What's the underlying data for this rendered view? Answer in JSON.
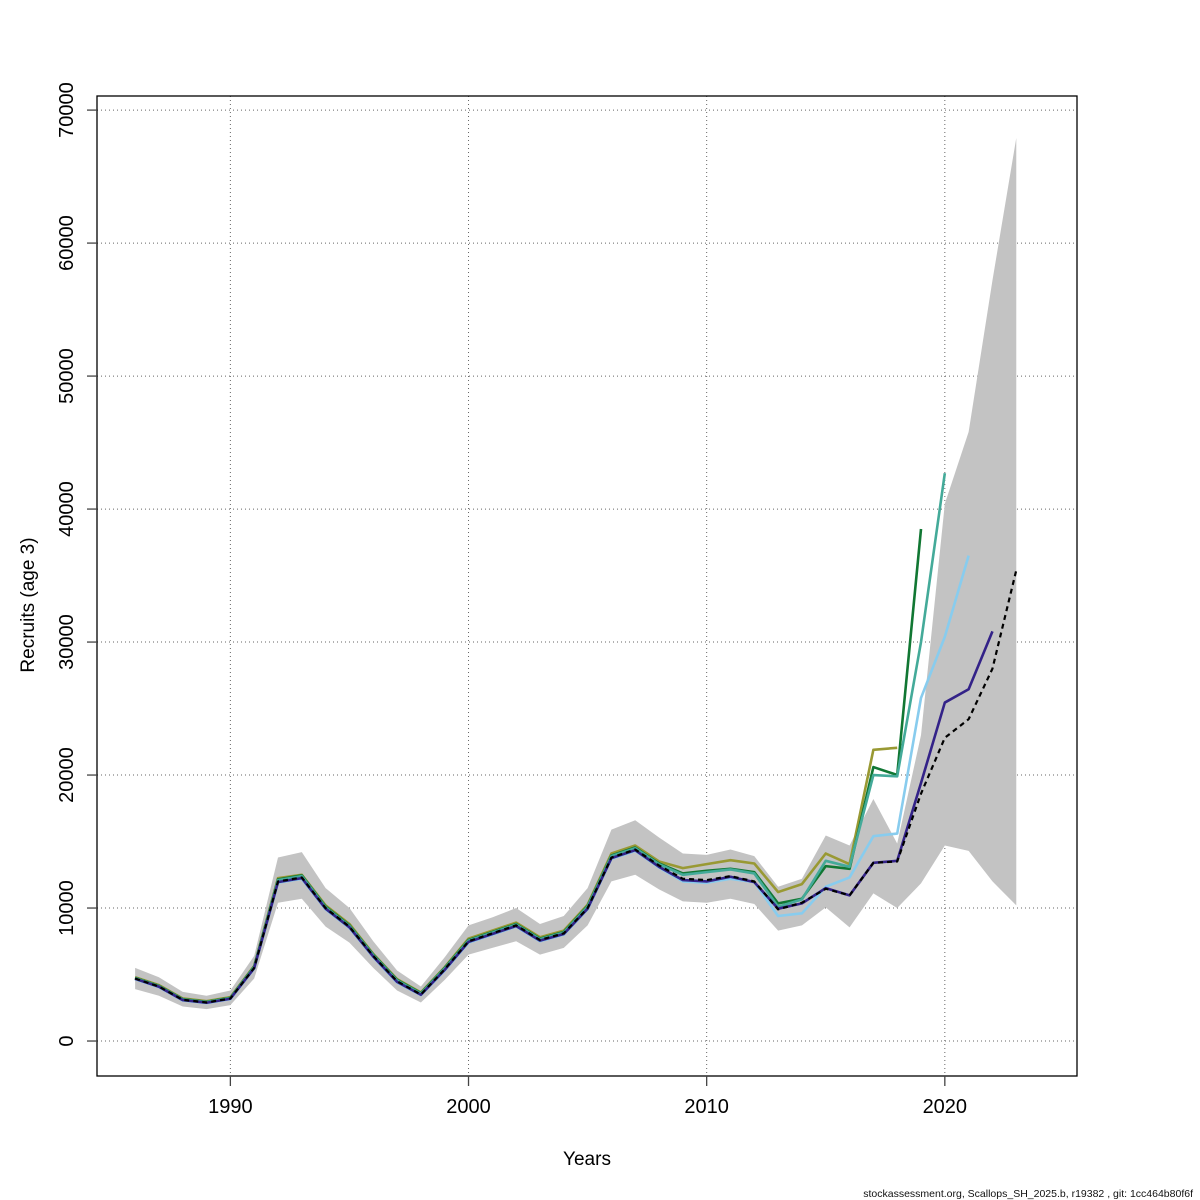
{
  "footer": {
    "text": "stockassessment.org, Scallops_SH_2025.b, r19382 , git: 1cc464b80f6f"
  },
  "chart_data": {
    "type": "line",
    "title": "",
    "xlabel": "Years",
    "ylabel": "Recruits (age 3)",
    "xlim": [
      1984.4,
      2025.55
    ],
    "ylim": [
      -2630,
      71060
    ],
    "x_ticks": [
      1990,
      2000,
      2010,
      2020
    ],
    "y_ticks": [
      0,
      10000,
      20000,
      30000,
      40000,
      50000,
      60000,
      70000
    ],
    "grid": "dotted",
    "legend": "none",
    "years": [
      1986,
      1987,
      1988,
      1989,
      1990,
      1991,
      1992,
      1993,
      1994,
      1995,
      1996,
      1997,
      1998,
      1999,
      2000,
      2001,
      2002,
      2003,
      2004,
      2005,
      2006,
      2007,
      2008,
      2009,
      2010,
      2011,
      2012,
      2013,
      2014,
      2015,
      2016,
      2017,
      2018,
      2019,
      2020,
      2021,
      2022,
      2023
    ],
    "confidence_band": {
      "color": "#c3c3c3",
      "lo": [
        3900,
        3400,
        2600,
        2400,
        2700,
        4700,
        10400,
        10700,
        8600,
        7400,
        5500,
        3800,
        2900,
        4600,
        6500,
        7000,
        7500,
        6500,
        7000,
        8700,
        12000,
        12500,
        11400,
        10500,
        10400,
        10700,
        10300,
        8300,
        8700,
        10050,
        8550,
        11100,
        10000,
        11850,
        14700,
        14300,
        12000,
        10200
      ],
      "hi": [
        5500,
        4800,
        3700,
        3400,
        3800,
        6400,
        13800,
        14200,
        11500,
        10000,
        7500,
        5300,
        4100,
        6300,
        8700,
        9300,
        10000,
        8800,
        9400,
        11500,
        15900,
        16600,
        15300,
        14100,
        14000,
        14400,
        13900,
        11600,
        12200,
        15450,
        14700,
        18200,
        14850,
        23000,
        40400,
        45800,
        57200,
        67900
      ]
    },
    "series": [
      {
        "name": "olive-line",
        "color": "#999933",
        "dash": null,
        "width": 2.6,
        "values": [
          4800,
          4200,
          3200,
          3000,
          3300,
          5650,
          12250,
          12500,
          10200,
          8800,
          6550,
          4650,
          3650,
          5550,
          7700,
          8300,
          8900,
          7800,
          8300,
          10250,
          14100,
          14700,
          13500,
          13000,
          13300,
          13600,
          13350,
          11200,
          11800,
          14100,
          13300,
          21900,
          22050,
          null,
          null,
          null,
          null,
          null
        ]
      },
      {
        "name": "green-line",
        "color": "#117733",
        "dash": null,
        "width": 2.6,
        "values": [
          4750,
          4150,
          3150,
          2950,
          3250,
          5600,
          12150,
          12450,
          10100,
          8700,
          6500,
          4600,
          3600,
          5500,
          7600,
          8200,
          8800,
          7700,
          8200,
          10150,
          13950,
          14550,
          13350,
          12600,
          12800,
          12950,
          12700,
          10350,
          10700,
          13150,
          12950,
          20600,
          20000,
          38500,
          null,
          null,
          null,
          null
        ]
      },
      {
        "name": "teal-line",
        "color": "#44AA99",
        "dash": null,
        "width": 2.6,
        "values": [
          4720,
          4120,
          3120,
          2920,
          3220,
          5550,
          12100,
          12400,
          10050,
          8650,
          6450,
          4550,
          3550,
          5450,
          7550,
          8150,
          8750,
          7650,
          8150,
          10100,
          13900,
          14500,
          13300,
          12500,
          12700,
          12900,
          12600,
          10100,
          10650,
          13550,
          13100,
          20000,
          19900,
          30000,
          42700,
          null,
          null,
          null
        ]
      },
      {
        "name": "lightblue-line",
        "color": "#88CCEE",
        "dash": null,
        "width": 2.6,
        "values": [
          4650,
          4050,
          3050,
          2850,
          3150,
          5450,
          11900,
          12200,
          9900,
          8500,
          6300,
          4400,
          3450,
          5300,
          7400,
          8000,
          8600,
          7500,
          8000,
          9900,
          13700,
          14300,
          13050,
          12000,
          11900,
          12200,
          11950,
          9400,
          9600,
          11600,
          12300,
          15400,
          15600,
          25800,
          30400,
          36500,
          null,
          null
        ]
      },
      {
        "name": "purple-line",
        "color": "#332288",
        "dash": null,
        "width": 2.6,
        "values": [
          4680,
          4080,
          3080,
          2880,
          3180,
          5480,
          11950,
          12250,
          9950,
          8550,
          6350,
          4450,
          3480,
          5350,
          7450,
          8050,
          8650,
          7550,
          8050,
          9950,
          13750,
          14350,
          13100,
          12100,
          12000,
          12350,
          11950,
          9950,
          10350,
          11500,
          10950,
          13400,
          13550,
          19400,
          25450,
          26450,
          30800,
          null
        ]
      },
      {
        "name": "black-dashed-line",
        "color": "#000000",
        "dash": "5 4",
        "width": 2.2,
        "values": [
          4700,
          4100,
          3100,
          2900,
          3200,
          5500,
          12000,
          12300,
          10000,
          8600,
          6400,
          4500,
          3500,
          5400,
          7500,
          8100,
          8700,
          7600,
          8100,
          10000,
          13800,
          14400,
          13200,
          12200,
          12100,
          12400,
          12000,
          9900,
          10400,
          11450,
          10950,
          13400,
          13500,
          18600,
          22800,
          24200,
          28000,
          35400
        ]
      }
    ]
  }
}
